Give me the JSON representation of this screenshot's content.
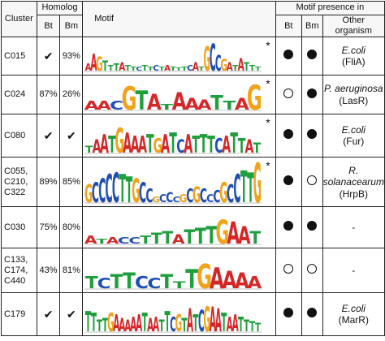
{
  "headers": {
    "cluster": "Cluster",
    "homolog": "Homolog",
    "bt": "Bt",
    "bm": "Bm",
    "motif": "Motif",
    "presence": "Motif presence in",
    "presence_bt": "Bt",
    "presence_bm": "Bm",
    "other": "Other organism"
  },
  "rows": [
    {
      "cluster": [
        "C015"
      ],
      "hom_bt": "✔",
      "hom_bm": "93%",
      "star": "*",
      "pres_bt": "filled",
      "pres_bm": "filled",
      "org": "E.coli",
      "gene": "(FliA)"
    },
    {
      "cluster": [
        "C024"
      ],
      "hom_bt": "87%",
      "hom_bm": "26%",
      "star": "*",
      "pres_bt": "open",
      "pres_bm": "filled",
      "org": "P. aeruginosa",
      "gene": "(LasR)"
    },
    {
      "cluster": [
        "C080"
      ],
      "hom_bt": "✔",
      "hom_bm": "✔",
      "star": "*",
      "pres_bt": "filled",
      "pres_bm": "filled",
      "org": "E.coli",
      "gene": "(Fur)"
    },
    {
      "cluster": [
        "C055,",
        "C210,",
        "C322"
      ],
      "hom_bt": "89%",
      "hom_bm": "85%",
      "star": "*",
      "pres_bt": "filled",
      "pres_bm": "open",
      "org": "R. solanacearum",
      "gene": "(HrpB)"
    },
    {
      "cluster": [
        "C030"
      ],
      "hom_bt": "75%",
      "hom_bm": "80%",
      "star": "",
      "pres_bt": "filled",
      "pres_bm": "filled",
      "org": "",
      "gene": "-"
    },
    {
      "cluster": [
        "C133,",
        "C174,",
        "C440"
      ],
      "hom_bt": "43%",
      "hom_bm": "81%",
      "star": "",
      "pres_bt": "open",
      "pres_bm": "open",
      "org": "",
      "gene": "-"
    },
    {
      "cluster": [
        "C179"
      ],
      "hom_bt": "✔",
      "hom_bm": "✔",
      "star": "",
      "pres_bt": "filled",
      "pres_bm": "filled",
      "org": "E.coli",
      "gene": "(MarR)"
    }
  ],
  "colors": {
    "A": "#d62728",
    "C": "#1f4fb4",
    "G": "#f2a21b",
    "T": "#1f9e3c"
  },
  "logos": [
    [
      [
        "A",
        0.25
      ],
      [
        "A",
        0.6
      ],
      [
        "G",
        0.5
      ],
      [
        "T",
        0.35
      ],
      [
        "T",
        0.2
      ],
      [
        "T",
        0.25
      ],
      [
        "A",
        0.3
      ],
      [
        "T",
        0.2
      ],
      [
        "T",
        0.15
      ],
      [
        "C",
        0.15
      ],
      [
        "T",
        0.2
      ],
      [
        "T",
        0.15
      ],
      [
        "C",
        0.2
      ],
      [
        "T",
        0.15
      ],
      [
        "A",
        0.2
      ],
      [
        "T",
        0.15
      ],
      [
        "T",
        0.1
      ],
      [
        "T",
        0.15
      ],
      [
        "C",
        0.2
      ],
      [
        "A",
        0.3
      ],
      [
        "T",
        0.15
      ],
      [
        "G",
        0.85
      ],
      [
        "C",
        0.95
      ],
      [
        "C",
        0.55
      ],
      [
        "G",
        0.4
      ],
      [
        "A",
        0.3
      ],
      [
        "T",
        0.2
      ],
      [
        "A",
        0.45
      ],
      [
        "T",
        0.3
      ],
      [
        "T",
        0.2
      ],
      [
        "T",
        0.15
      ]
    ],
    [
      [
        "A",
        0.3
      ],
      [
        "A",
        0.3
      ],
      [
        "C",
        0.3
      ],
      [
        "G",
        0.8
      ],
      [
        "T",
        0.65
      ],
      [
        "A",
        0.55
      ],
      [
        "T",
        0.2
      ],
      [
        "A",
        0.6
      ],
      [
        "A",
        0.4
      ],
      [
        "A",
        0.35
      ],
      [
        "T",
        0.5
      ],
      [
        "T",
        0.3
      ],
      [
        "A",
        0.4
      ],
      [
        "G",
        0.85
      ]
    ],
    [
      [
        "T",
        0.2
      ],
      [
        "A",
        0.4
      ],
      [
        "A",
        0.55
      ],
      [
        "T",
        0.5
      ],
      [
        "G",
        0.75
      ],
      [
        "A",
        0.6
      ],
      [
        "A",
        0.5
      ],
      [
        "A",
        0.5
      ],
      [
        "T",
        0.55
      ],
      [
        "G",
        0.45
      ],
      [
        "A",
        0.55
      ],
      [
        "T",
        0.6
      ],
      [
        "C",
        0.4
      ],
      [
        "A",
        0.55
      ],
      [
        "T",
        0.5
      ],
      [
        "T",
        0.55
      ],
      [
        "T",
        0.5
      ],
      [
        "C",
        0.45
      ],
      [
        "A",
        0.5
      ],
      [
        "T",
        0.6
      ],
      [
        "T",
        0.45
      ],
      [
        "A",
        0.4
      ],
      [
        "T",
        0.3
      ]
    ],
    [
      [
        "G",
        0.45
      ],
      [
        "C",
        0.5
      ],
      [
        "C",
        0.6
      ],
      [
        "C",
        0.7
      ],
      [
        "C",
        0.75
      ],
      [
        "T",
        0.7
      ],
      [
        "T",
        0.65
      ],
      [
        "G",
        0.6
      ],
      [
        "C",
        0.5
      ],
      [
        "C",
        0.35
      ],
      [
        "G",
        0.15
      ],
      [
        "C",
        0.2
      ],
      [
        "C",
        0.25
      ],
      [
        "C",
        0.15
      ],
      [
        "G",
        0.2
      ],
      [
        "C",
        0.35
      ],
      [
        "G",
        0.4
      ],
      [
        "C",
        0.35
      ],
      [
        "C",
        0.2
      ],
      [
        "C",
        0.3
      ],
      [
        "G",
        0.5
      ],
      [
        "C",
        0.45
      ],
      [
        "C",
        0.7
      ],
      [
        "T",
        0.8
      ],
      [
        "T",
        0.75
      ],
      [
        "G",
        1.0
      ]
    ],
    [
      [
        "A",
        0.25
      ],
      [
        "T",
        0.15
      ],
      [
        "A",
        0.2
      ],
      [
        "C",
        0.2
      ],
      [
        "C",
        0.2
      ],
      [
        "T",
        0.25
      ],
      [
        "T",
        0.35
      ],
      [
        "T",
        0.4
      ],
      [
        "A",
        0.3
      ],
      [
        "T",
        0.45
      ],
      [
        "T",
        0.5
      ],
      [
        "T",
        0.55
      ],
      [
        "G",
        0.75
      ],
      [
        "A",
        0.7
      ],
      [
        "A",
        0.55
      ],
      [
        "T",
        0.4
      ]
    ],
    [
      [
        "T",
        0.35
      ],
      [
        "C",
        0.3
      ],
      [
        "T",
        0.4
      ],
      [
        "T",
        0.45
      ],
      [
        "C",
        0.35
      ],
      [
        "C",
        0.3
      ],
      [
        "T",
        0.4
      ],
      [
        "T",
        0.2
      ],
      [
        "T",
        0.55
      ],
      [
        "G",
        0.7
      ],
      [
        "A",
        0.6
      ],
      [
        "A",
        0.5
      ],
      [
        "A",
        0.45
      ],
      [
        "A",
        0.35
      ]
    ],
    [
      [
        "T",
        0.6
      ],
      [
        "T",
        0.55
      ],
      [
        "T",
        0.35
      ],
      [
        "T",
        0.4
      ],
      [
        "G",
        0.55
      ],
      [
        "A",
        0.5
      ],
      [
        "A",
        0.4
      ],
      [
        "A",
        0.35
      ],
      [
        "A",
        0.45
      ],
      [
        "A",
        0.5
      ],
      [
        "T",
        0.55
      ],
      [
        "A",
        0.4
      ],
      [
        "A",
        0.45
      ],
      [
        "T",
        0.35
      ],
      [
        "T",
        0.6
      ],
      [
        "C",
        0.45
      ],
      [
        "G",
        0.5
      ],
      [
        "T",
        0.4
      ],
      [
        "A",
        0.7
      ],
      [
        "T",
        0.5
      ],
      [
        "C",
        0.65
      ],
      [
        "G",
        0.75
      ],
      [
        "A",
        0.75
      ],
      [
        "A",
        0.7
      ],
      [
        "T",
        0.55
      ],
      [
        "A",
        0.45
      ],
      [
        "A",
        0.5
      ],
      [
        "T",
        0.45
      ],
      [
        "T",
        0.35
      ],
      [
        "T",
        0.3
      ],
      [
        "T",
        0.25
      ]
    ]
  ]
}
